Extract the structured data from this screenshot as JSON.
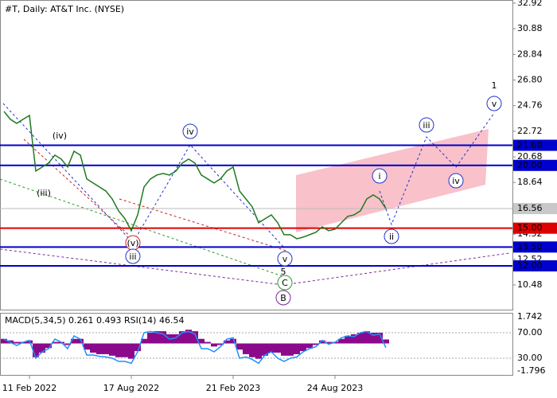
{
  "chart_data": [
    {
      "type": "line",
      "title": "#T, Daily:  AT&T Inc. (NYSE)",
      "categories": [
        null,
        null,
        null,
        null,
        "11 Feb 2022",
        null,
        null,
        null,
        null,
        null,
        null,
        null,
        null,
        null,
        null,
        null,
        null,
        null,
        null,
        null,
        "17 Aug 2022",
        null,
        null,
        null,
        null,
        null,
        null,
        null,
        null,
        null,
        null,
        null,
        null,
        null,
        null,
        null,
        "21 Feb 2023",
        null,
        null,
        null,
        null,
        null,
        null,
        null,
        null,
        null,
        null,
        null,
        null,
        null,
        null,
        null,
        "24 Aug 2023",
        null,
        null,
        null,
        null,
        null,
        null,
        null,
        null
      ],
      "series": [
        {
          "color": "#1f7a1f",
          "values": [
            24.3,
            23.67,
            23.35,
            23.67,
            23.98,
            19.55,
            19.87,
            20.18,
            20.82,
            20.5,
            19.87,
            21.13,
            20.82,
            18.92,
            18.6,
            18.28,
            17.96,
            17.33,
            16.38,
            15.75,
            14.8,
            16.06,
            18.28,
            18.92,
            19.23,
            19.36,
            19.23,
            19.55,
            20.18,
            20.5,
            20.18,
            19.23,
            18.92,
            18.6,
            18.92,
            19.55,
            19.87,
            17.96,
            17.33,
            16.7,
            15.43,
            15.75,
            16.06,
            15.43,
            14.48,
            14.48,
            14.16,
            14.29,
            14.48,
            14.67,
            15.11,
            14.8,
            14.92,
            15.43,
            15.94,
            16.06,
            16.38,
            17.33,
            17.65,
            17.33,
            16.56
          ]
        }
      ],
      "ylim": [
        8.45,
        33.17
      ],
      "yticks": [
        32.92,
        30.88,
        28.84,
        {
          "value": 26.8,
          "label": "26.80"
        },
        24.76,
        22.72,
        20.68,
        18.64,
        14.52,
        12.52,
        10.48
      ],
      "levels": [
        {
          "value": 21.6,
          "label": "21.60",
          "color": "#0000cc"
        },
        {
          "value": 20,
          "label": "20.00",
          "color": "#0000cc"
        },
        {
          "value": 15,
          "label": "15.00",
          "color": "#dd0000"
        },
        {
          "value": 13.5,
          "label": "13.50",
          "color": "#0000cc"
        },
        {
          "value": 12,
          "label": "12.00",
          "color": "#0000cc"
        }
      ],
      "current_price": {
        "value": 16.56,
        "label": "16.56"
      },
      "annotations": [
        "(iv)",
        "(iii)",
        "(v)",
        "iii",
        "iv",
        "v",
        "5",
        "C",
        "B",
        "i",
        "ii",
        "iii",
        "iv",
        "v",
        "1"
      ]
    },
    {
      "type": "macd",
      "label": "MACD(5,34,5) 0.261 0.493 RSI(14) 46.54",
      "series": [
        {
          "color": "#8b0a8b",
          "values": [
            0.3,
            0.2,
            0.1,
            0.1,
            0.2,
            -0.9,
            -0.6,
            -0.3,
            0.1,
            0.1,
            -0.1,
            0.3,
            0.3,
            -0.4,
            -0.6,
            -0.7,
            -0.7,
            -0.8,
            -0.9,
            -0.9,
            -1.0,
            -0.5,
            0.3,
            0.7,
            0.8,
            0.8,
            0.6,
            0.6,
            0.8,
            0.9,
            0.8,
            0.3,
            0.1,
            -0.2,
            -0.1,
            0.2,
            0.3,
            -0.4,
            -0.7,
            -0.9,
            -1.0,
            -0.8,
            -0.6,
            -0.6,
            -0.8,
            -0.8,
            -0.7,
            -0.5,
            -0.3,
            -0.1,
            0.2,
            0.1,
            0.1,
            0.3,
            0.5,
            0.6,
            0.7,
            0.8,
            0.7,
            0.7,
            0.261
          ]
        },
        {
          "color": "#1e90ff",
          "axis": "y2",
          "values": [
            60,
            55,
            50,
            55,
            58,
            30,
            40,
            45,
            60,
            55,
            45,
            65,
            60,
            35,
            35,
            33,
            32,
            30,
            25,
            25,
            22,
            40,
            70,
            72,
            70,
            68,
            60,
            62,
            70,
            72,
            68,
            45,
            45,
            40,
            48,
            60,
            62,
            30,
            32,
            28,
            22,
            35,
            40,
            30,
            25,
            30,
            32,
            40,
            45,
            48,
            58,
            52,
            55,
            62,
            65,
            64,
            70,
            72,
            66,
            68,
            46.54
          ]
        }
      ],
      "ylim": [
        -2.004,
        1.898
      ],
      "yticks": [
        1.742,
        -1.796
      ],
      "y2lim": [
        5,
        98.75
      ],
      "y2ticks": [
        {
          "value": 70,
          "label": "70.00"
        },
        {
          "value": 30,
          "label": "30.00"
        }
      ]
    }
  ]
}
